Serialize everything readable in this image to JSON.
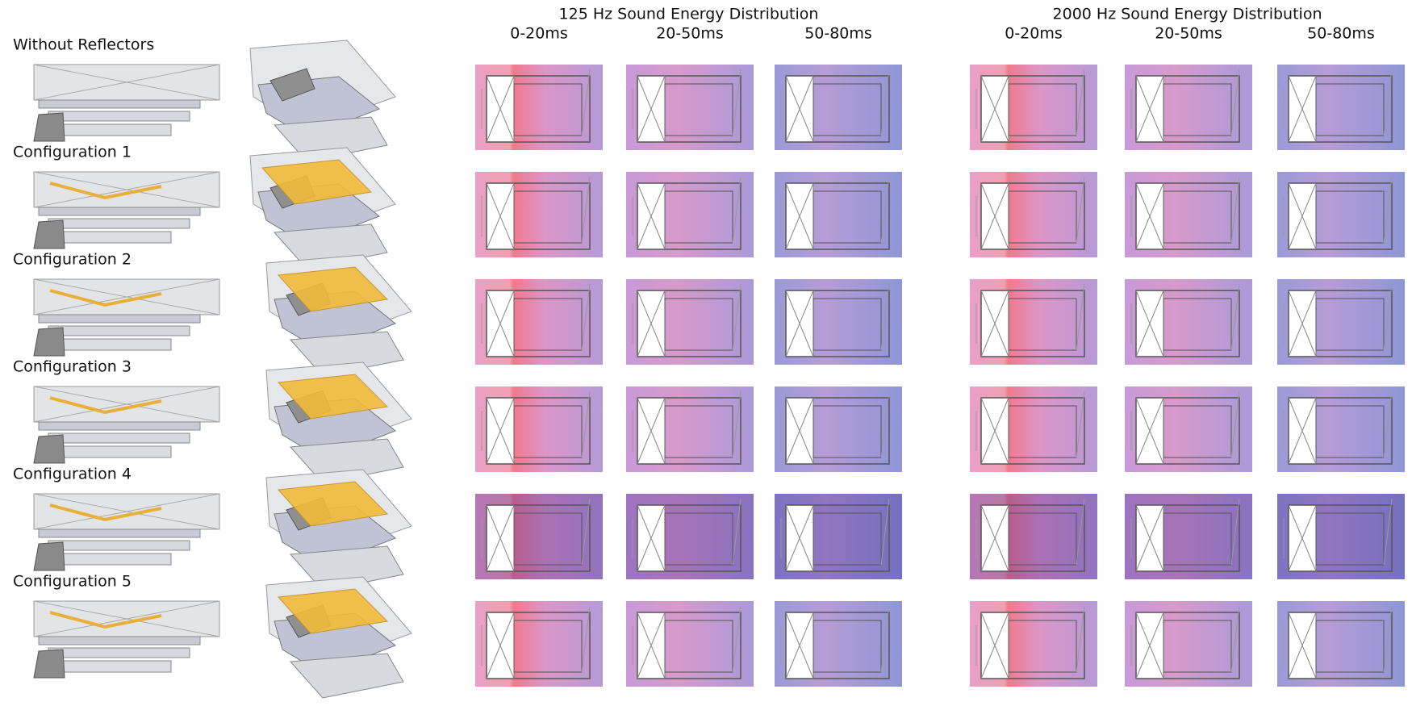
{
  "headers": [
    {
      "title": "125 Hz Sound Energy Distribution",
      "columns": [
        "0-20ms",
        "20-50ms",
        "50-80ms"
      ]
    },
    {
      "title": "2000 Hz Sound Energy Distribution",
      "columns": [
        "0-20ms",
        "20-50ms",
        "50-80ms"
      ]
    }
  ],
  "rows": [
    "Without Reflectors",
    "Configuration 1",
    "Configuration 2",
    "Configuration 3",
    "Configuration 4",
    "Configuration 5"
  ]
}
